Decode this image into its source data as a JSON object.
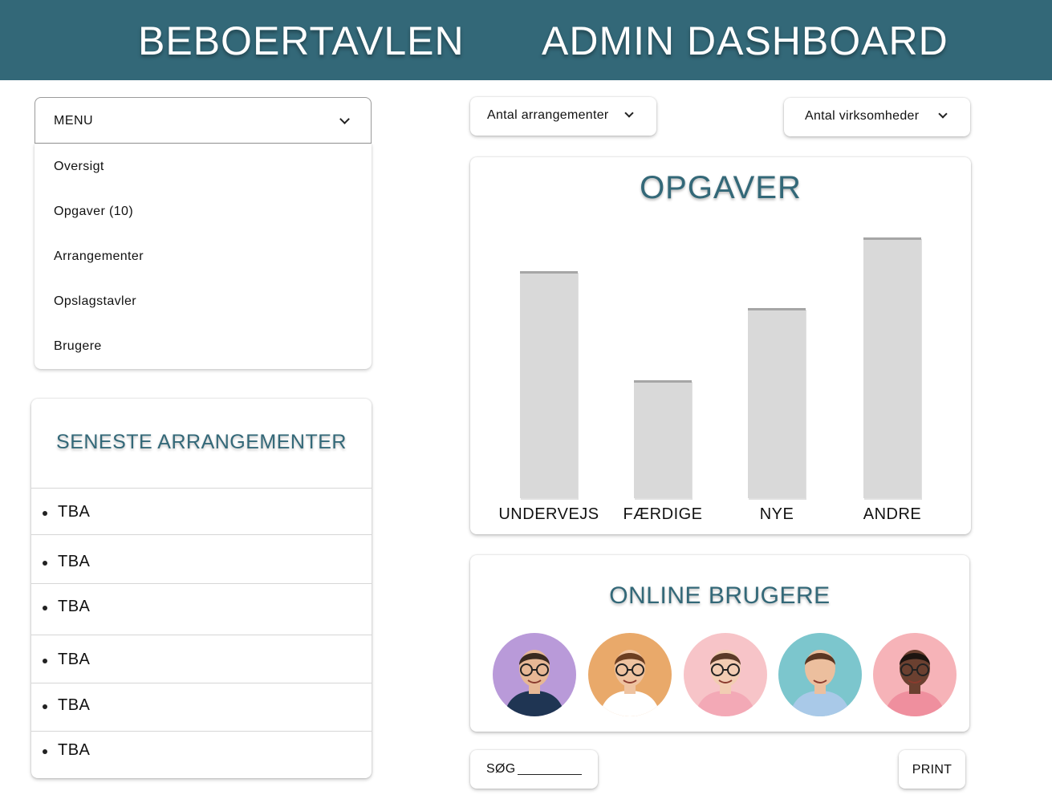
{
  "header": {
    "left_title": "BEBOERTAVLEN",
    "right_title": "ADMIN DASHBOARD"
  },
  "menu": {
    "label": "MENU",
    "items": [
      {
        "label": "Oversigt"
      },
      {
        "label": "Opgaver (10)"
      },
      {
        "label": "Arrangementer"
      },
      {
        "label": "Opslagstavler"
      },
      {
        "label": "Brugere"
      }
    ]
  },
  "events": {
    "title": "SENESTE ARRANGEMENTER",
    "items": [
      "TBA",
      "TBA",
      "TBA",
      "TBA",
      "TBA",
      "TBA"
    ]
  },
  "dropdowns": {
    "events_count": "Antal arrangementer",
    "companies_count": "Antal virksomheder"
  },
  "chart_data": {
    "type": "bar",
    "title": "OPGAVER",
    "categories": [
      "UNDERVEJS",
      "FÆRDIGE",
      "NYE",
      "ANDRE"
    ],
    "values": [
      283,
      147,
      237,
      325
    ],
    "ylim": [
      0,
      330
    ],
    "grid": false,
    "colors": {
      "bar": "#d9d9d9",
      "bar_top": "#a6a6a6"
    }
  },
  "online_users": {
    "title": "ONLINE BRUGERE",
    "avatars": [
      {
        "bg": "#b99ad9",
        "skin": "#e7b895",
        "hair": "#3a2a20",
        "shirt": "#1f3553",
        "glasses": true
      },
      {
        "bg": "#e9a96a",
        "skin": "#efc3a0",
        "hair": "#6b3e22",
        "shirt": "#ffffff",
        "glasses": true
      },
      {
        "bg": "#f7c4c8",
        "skin": "#f2cdb3",
        "hair": "#5a3a28",
        "shirt": "#f3a9b6",
        "glasses": true
      },
      {
        "bg": "#7cc6cd",
        "skin": "#ecbf9e",
        "hair": "#5b3622",
        "shirt": "#a9c9e8",
        "glasses": false
      },
      {
        "bg": "#f6b3b8",
        "skin": "#6b4030",
        "hair": "#1d1410",
        "shirt": "#ef8f9e",
        "glasses": true
      }
    ]
  },
  "search": {
    "label": "SØG"
  },
  "print": {
    "label": "PRINT"
  },
  "colors": {
    "brand": "#336878",
    "accent_text": "#336878"
  }
}
